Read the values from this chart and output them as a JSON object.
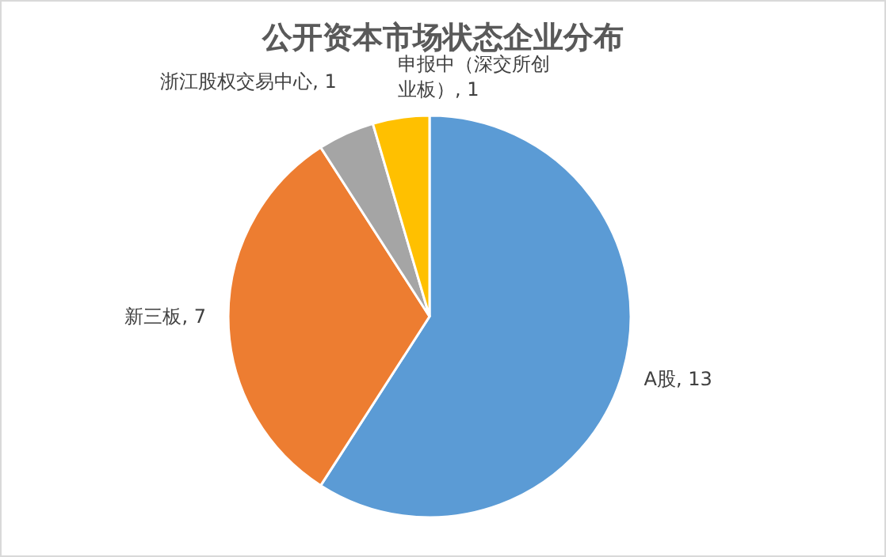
{
  "chart_data": {
    "type": "pie",
    "title": "公开资本市场状态企业分布",
    "categories": [
      "A股",
      "新三板",
      "浙江股权交易中心",
      "申报中（深交所创业板）"
    ],
    "values": [
      13,
      7,
      1,
      1
    ],
    "colors": [
      "#5b9bd5",
      "#ed7d31",
      "#a5a5a5",
      "#ffc000"
    ],
    "value_labels": [
      ", 13",
      ", 7",
      ", 1",
      ", 1"
    ]
  }
}
